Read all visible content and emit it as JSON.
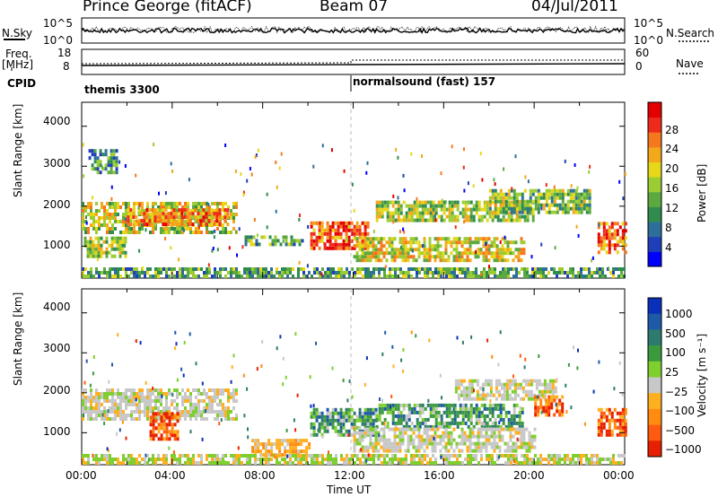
{
  "header": {
    "station": "Prince George (fitACF)",
    "beam": "Beam 07",
    "date": "04/Jul/2011"
  },
  "top_panels": {
    "left_label_1": "N.Sky",
    "left_label_2": "Freq.",
    "left_label_2_unit": "[MHz]",
    "left_label_3": "CPID",
    "right_label_1": "N.Search",
    "right_label_2": "Nave",
    "noise_ticks_left": [
      "10^5",
      "10^0"
    ],
    "noise_ticks_right": [
      "10^5",
      "10^0"
    ],
    "freq_ticks_left": [
      "18",
      "8"
    ],
    "nave_ticks_right": [
      "60",
      "0"
    ],
    "cpid_segments": [
      {
        "label": "themis 3300",
        "start_hour": 0,
        "end_hour": 12
      },
      {
        "label": "normalsound (fast) 157",
        "start_hour": 12,
        "end_hour": 24
      }
    ]
  },
  "chart_data": [
    {
      "type": "heatmap",
      "name": "power",
      "ylabel": "Slant Range [km]",
      "ylim": [
        200,
        4600
      ],
      "yticks": [
        "1000",
        "2000",
        "3000",
        "4000"
      ],
      "xlim_hours": [
        0,
        24
      ],
      "colorbar": {
        "label": "Power [dB]",
        "ticks": [
          "4",
          "8",
          "12",
          "16",
          "20",
          "24",
          "28"
        ],
        "colors": [
          "#0000ff",
          "#1f3fb8",
          "#2e6e9a",
          "#2f8c4e",
          "#5caa3f",
          "#9ccc33",
          "#e6d818",
          "#f3a81a",
          "#f6781e",
          "#ee2a1a",
          "#e30000"
        ]
      },
      "bands": [
        {
          "t0": 0.0,
          "t1": 6.8,
          "r0": 1300,
          "r1": 2100,
          "level": 0.55
        },
        {
          "t0": 2.0,
          "t1": 6.5,
          "r0": 1500,
          "r1": 1900,
          "level": 0.75
        },
        {
          "t0": 0.1,
          "t1": 2.0,
          "r0": 700,
          "r1": 1200,
          "level": 0.5
        },
        {
          "t0": 0.3,
          "t1": 1.5,
          "r0": 2800,
          "r1": 3400,
          "level": 0.3
        },
        {
          "t0": 7.2,
          "t1": 9.8,
          "r0": 1000,
          "r1": 1250,
          "level": 0.35
        },
        {
          "t0": 10.1,
          "t1": 12.6,
          "r0": 900,
          "r1": 1600,
          "level": 0.85
        },
        {
          "t0": 12.0,
          "t1": 19.5,
          "r0": 600,
          "r1": 1200,
          "level": 0.6
        },
        {
          "t0": 13.0,
          "t1": 20.0,
          "r0": 1600,
          "r1": 2100,
          "level": 0.5
        },
        {
          "t0": 18.0,
          "t1": 22.5,
          "r0": 1800,
          "r1": 2400,
          "level": 0.45
        },
        {
          "t0": 22.8,
          "t1": 24.0,
          "r0": 800,
          "r1": 1600,
          "level": 0.8
        },
        {
          "t0": 0.0,
          "t1": 24.0,
          "r0": 200,
          "r1": 450,
          "level": 0.35
        }
      ]
    },
    {
      "type": "heatmap",
      "name": "velocity",
      "ylabel": "Slant Range [km]",
      "ylim": [
        200,
        4600
      ],
      "yticks": [
        "1000",
        "2000",
        "3000",
        "4000"
      ],
      "xlabel": "Time UT",
      "xticks": [
        "00:00",
        "04:00",
        "08:00",
        "12:00",
        "16:00",
        "20:00",
        "00:00"
      ],
      "colorbar": {
        "label": "Velocity [m s⁻¹]",
        "ticks": [
          "1000",
          "500",
          "100",
          "25",
          "−25",
          "−100",
          "−500",
          "−1000"
        ],
        "colors": [
          "#0a2fb8",
          "#1e5aa8",
          "#2d7a6e",
          "#3c9a3e",
          "#7fcf2e",
          "#c8c8c8",
          "#ffb020",
          "#ff8c10",
          "#ff5a10",
          "#e62000"
        ]
      },
      "bands": [
        {
          "t0": 0.0,
          "t1": 6.8,
          "r0": 1300,
          "r1": 2100,
          "level": "grey"
        },
        {
          "t0": 3.0,
          "t1": 4.2,
          "r0": 800,
          "r1": 1500,
          "level": "neg"
        },
        {
          "t0": 7.5,
          "t1": 10.0,
          "r0": 400,
          "r1": 800,
          "level": "negweak"
        },
        {
          "t0": 10.1,
          "t1": 13.0,
          "r0": 900,
          "r1": 1600,
          "level": "pos"
        },
        {
          "t0": 13.0,
          "t1": 19.5,
          "r0": 1100,
          "r1": 1700,
          "level": "pos"
        },
        {
          "t0": 12.0,
          "t1": 20.0,
          "r0": 500,
          "r1": 1100,
          "level": "grey"
        },
        {
          "t0": 16.5,
          "t1": 21.0,
          "r0": 1800,
          "r1": 2300,
          "level": "grey"
        },
        {
          "t0": 20.0,
          "t1": 21.3,
          "r0": 1400,
          "r1": 1900,
          "level": "neg"
        },
        {
          "t0": 22.8,
          "t1": 24.0,
          "r0": 900,
          "r1": 1600,
          "level": "neg"
        },
        {
          "t0": 0.0,
          "t1": 24.0,
          "r0": 200,
          "r1": 420,
          "level": "posweak"
        }
      ]
    }
  ]
}
